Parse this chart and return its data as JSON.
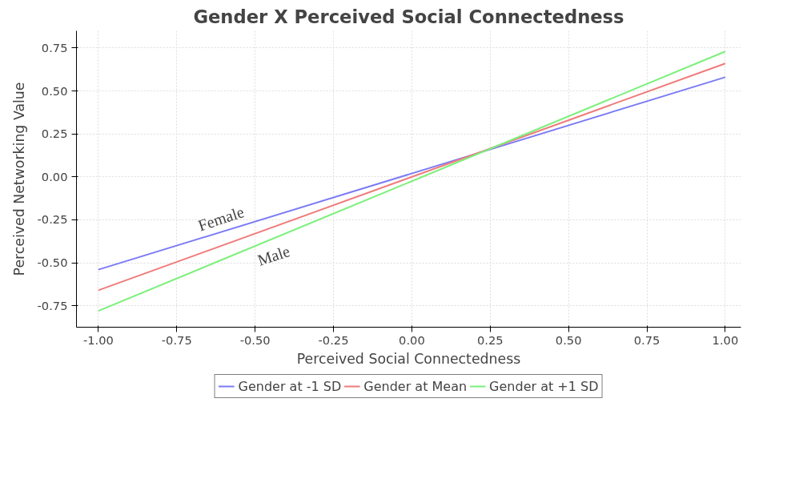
{
  "chart_data": {
    "type": "line",
    "title": "Gender X Perceived Social Connectedness",
    "xlabel": "Perceived Social Connectedness",
    "ylabel": "Perceived Networking Value",
    "x": [
      -1.0,
      1.0
    ],
    "series": [
      {
        "name": "Gender at -1 SD",
        "color": "#7b7bf5",
        "values": [
          -0.54,
          0.58
        ]
      },
      {
        "name": "Gender at Mean",
        "color": "#f07b7b",
        "values": [
          -0.66,
          0.66
        ]
      },
      {
        "name": "Gender at +1 SD",
        "color": "#7bf07b",
        "values": [
          -0.78,
          0.73
        ]
      }
    ],
    "xlim": [
      -1.07,
      1.05
    ],
    "ylim": [
      -0.875,
      0.85
    ],
    "xticks": [
      {
        "value": -1.0,
        "label": "-1.00"
      },
      {
        "value": -0.75,
        "label": "-0.75"
      },
      {
        "value": -0.5,
        "label": "-0.50"
      },
      {
        "value": -0.25,
        "label": "-0.25"
      },
      {
        "value": 0,
        "label": "0.00"
      },
      {
        "value": 0.25,
        "label": "0.25"
      },
      {
        "value": 0.5,
        "label": "0.50"
      },
      {
        "value": 0.75,
        "label": "0.75"
      },
      {
        "value": 1.0,
        "label": "1.00"
      }
    ],
    "yticks": [
      {
        "value": -0.75,
        "label": "-0.75"
      },
      {
        "value": -0.5,
        "label": "-0.50"
      },
      {
        "value": -0.25,
        "label": "-0.25"
      },
      {
        "value": 0,
        "label": "0.00"
      },
      {
        "value": 0.25,
        "label": "0.25"
      },
      {
        "value": 0.5,
        "label": "0.50"
      },
      {
        "value": 0.75,
        "label": "0.75"
      }
    ],
    "annotations": [
      {
        "text": "Female",
        "x": -0.6,
        "y": -0.3
      },
      {
        "text": "Male",
        "x": -0.45,
        "y": -0.39
      }
    ],
    "grid": true,
    "legend": "bottom",
    "marker": "none",
    "line_style": "solid"
  }
}
